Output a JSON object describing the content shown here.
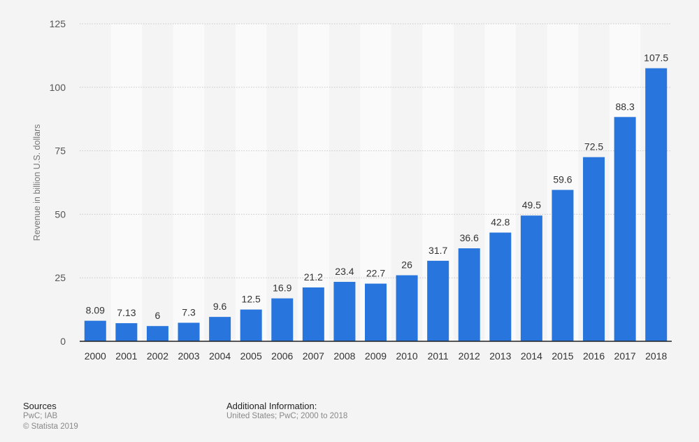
{
  "chart_data": {
    "type": "bar",
    "title": "",
    "xlabel": "",
    "ylabel": "Revenue in billion U.S. dollars",
    "ylim": [
      0,
      125
    ],
    "yticks": [
      0,
      25,
      50,
      75,
      100,
      125
    ],
    "grid": true,
    "bar_color": "#2876dd",
    "categories": [
      "2000",
      "2001",
      "2002",
      "2003",
      "2004",
      "2005",
      "2006",
      "2007",
      "2008",
      "2009",
      "2010",
      "2011",
      "2012",
      "2013",
      "2014",
      "2015",
      "2016",
      "2017",
      "2018"
    ],
    "values": [
      8.09,
      7.13,
      6,
      7.3,
      9.6,
      12.5,
      16.9,
      21.2,
      23.4,
      22.7,
      26,
      31.7,
      36.6,
      42.8,
      49.5,
      59.6,
      72.5,
      88.3,
      107.5
    ],
    "labels": [
      "8.09",
      "7.13",
      "6",
      "7.3",
      "9.6",
      "12.5",
      "16.9",
      "21.2",
      "23.4",
      "22.7",
      "26",
      "31.7",
      "36.6",
      "42.8",
      "49.5",
      "59.6",
      "72.5",
      "88.3",
      "107.5"
    ]
  },
  "footer": {
    "sources_heading": "Sources",
    "sources": "PwC; IAB",
    "copyright": "© Statista 2019",
    "additional_heading": "Additional Information:",
    "additional": "United States; PwC; 2000 to 2018"
  }
}
